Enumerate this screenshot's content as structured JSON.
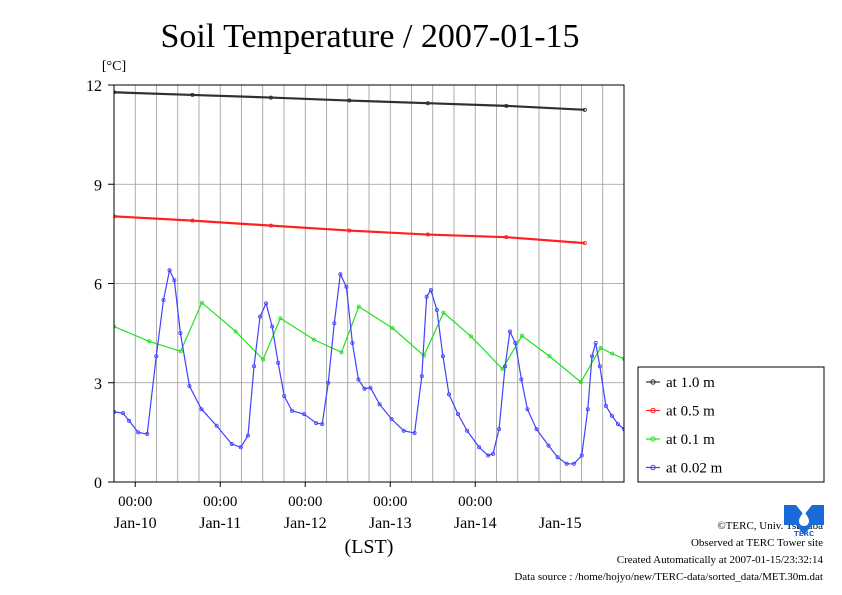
{
  "chart_data": {
    "type": "line",
    "title": "Soil Temperature / 2007-01-15",
    "ylabel": "[°C]",
    "xlabel": "(LST)",
    "ylim": [
      0,
      12
    ],
    "yticks": [
      "0",
      "3",
      "6",
      "9",
      "12"
    ],
    "grid": true,
    "legend_position": "right",
    "x_time_ticks": [
      "00:00",
      "00:00",
      "00:00",
      "00:00",
      "00:00"
    ],
    "x_date_labels": [
      "Jan-10",
      "Jan-11",
      "Jan-12",
      "Jan-13",
      "Jan-14",
      "Jan-15"
    ],
    "x_range_days": [
      "Jan-09 18:00",
      "Jan-15 24:00"
    ],
    "series": [
      {
        "name": "at 1.0 m",
        "color": "#303030",
        "points": [
          [
            0,
            11.78
          ],
          [
            1,
            11.7
          ],
          [
            2,
            11.62
          ],
          [
            3,
            11.53
          ],
          [
            4,
            11.45
          ],
          [
            5,
            11.37
          ],
          [
            6,
            11.25
          ]
        ]
      },
      {
        "name": "at 0.5 m",
        "color": "#ff2020",
        "points": [
          [
            0,
            8.03
          ],
          [
            1,
            7.9
          ],
          [
            2,
            7.75
          ],
          [
            3,
            7.6
          ],
          [
            4,
            7.48
          ],
          [
            5,
            7.4
          ],
          [
            6,
            7.22
          ]
        ]
      },
      {
        "name": "at 0.1 m",
        "color": "#20e020",
        "points": [
          [
            0,
            4.7
          ],
          [
            0.45,
            4.25
          ],
          [
            0.85,
            3.95
          ],
          [
            1.12,
            5.42
          ],
          [
            1.55,
            4.55
          ],
          [
            1.9,
            3.7
          ],
          [
            2.12,
            4.95
          ],
          [
            2.55,
            4.3
          ],
          [
            2.9,
            3.92
          ],
          [
            3.12,
            5.3
          ],
          [
            3.55,
            4.65
          ],
          [
            3.95,
            3.82
          ],
          [
            4.2,
            5.12
          ],
          [
            4.55,
            4.4
          ],
          [
            4.95,
            3.42
          ],
          [
            5.2,
            4.42
          ],
          [
            5.55,
            3.8
          ],
          [
            5.95,
            3.02
          ],
          [
            6.2,
            4.05
          ],
          [
            6.35,
            3.88
          ],
          [
            6.5,
            3.72
          ]
        ]
      },
      {
        "name": "at 0.02 m",
        "color": "#4040ff",
        "points": [
          [
            0,
            2.12
          ],
          [
            0.15,
            2.08
          ],
          [
            0.25,
            1.85
          ],
          [
            0.4,
            1.5
          ],
          [
            0.55,
            1.45
          ],
          [
            0.7,
            3.8
          ],
          [
            0.82,
            5.5
          ],
          [
            0.92,
            6.4
          ],
          [
            1.0,
            6.1
          ],
          [
            1.1,
            4.5
          ],
          [
            1.25,
            2.9
          ],
          [
            1.45,
            2.2
          ],
          [
            1.7,
            1.7
          ],
          [
            1.95,
            1.15
          ],
          [
            2.1,
            1.05
          ],
          [
            2.22,
            1.4
          ],
          [
            2.32,
            3.5
          ],
          [
            2.42,
            5.0
          ],
          [
            2.52,
            5.4
          ],
          [
            2.62,
            4.7
          ],
          [
            2.72,
            3.6
          ],
          [
            2.82,
            2.6
          ],
          [
            2.95,
            2.15
          ],
          [
            3.15,
            2.05
          ],
          [
            3.35,
            1.78
          ],
          [
            3.45,
            1.75
          ],
          [
            3.55,
            3.0
          ],
          [
            3.65,
            4.8
          ],
          [
            3.75,
            6.28
          ],
          [
            3.85,
            5.9
          ],
          [
            3.95,
            4.2
          ],
          [
            4.05,
            3.1
          ],
          [
            4.15,
            2.82
          ],
          [
            4.25,
            2.85
          ],
          [
            4.4,
            2.35
          ],
          [
            4.6,
            1.9
          ],
          [
            4.8,
            1.55
          ],
          [
            4.98,
            1.48
          ],
          [
            5.1,
            3.2
          ],
          [
            5.18,
            5.6
          ],
          [
            5.25,
            5.8
          ],
          [
            5.35,
            5.2
          ],
          [
            5.45,
            3.8
          ],
          [
            5.55,
            2.65
          ],
          [
            5.7,
            2.05
          ],
          [
            5.85,
            1.55
          ],
          [
            6.05,
            1.05
          ],
          [
            6.2,
            0.8
          ],
          [
            6.28,
            0.85
          ],
          [
            6.38,
            1.6
          ],
          [
            6.48,
            3.5
          ],
          [
            6.56,
            4.55
          ],
          [
            6.65,
            4.2
          ],
          [
            6.75,
            3.1
          ],
          [
            6.85,
            2.2
          ],
          [
            7.0,
            1.6
          ],
          [
            7.2,
            1.1
          ],
          [
            7.35,
            0.75
          ],
          [
            7.5,
            0.55
          ],
          [
            7.62,
            0.55
          ],
          [
            7.75,
            0.8
          ],
          [
            7.85,
            2.2
          ],
          [
            7.92,
            3.8
          ],
          [
            7.98,
            4.2
          ],
          [
            8.05,
            3.5
          ],
          [
            8.15,
            2.3
          ],
          [
            8.25,
            2.0
          ],
          [
            8.35,
            1.75
          ],
          [
            8.45,
            1.6
          ]
        ]
      }
    ]
  },
  "legend_title": "",
  "credits": {
    "copyright": "©TERC, Univ. Tsukuba",
    "observed": "Observed at TERC Tower site",
    "created": "Created Automatically at 2007-01-15/23:32:14",
    "source": "Data source : /home/hojyo/new/TERC-data/sorted_data/MET.30m.dat"
  },
  "logo": {
    "text": "TERC",
    "color": "#1a6ad8"
  }
}
